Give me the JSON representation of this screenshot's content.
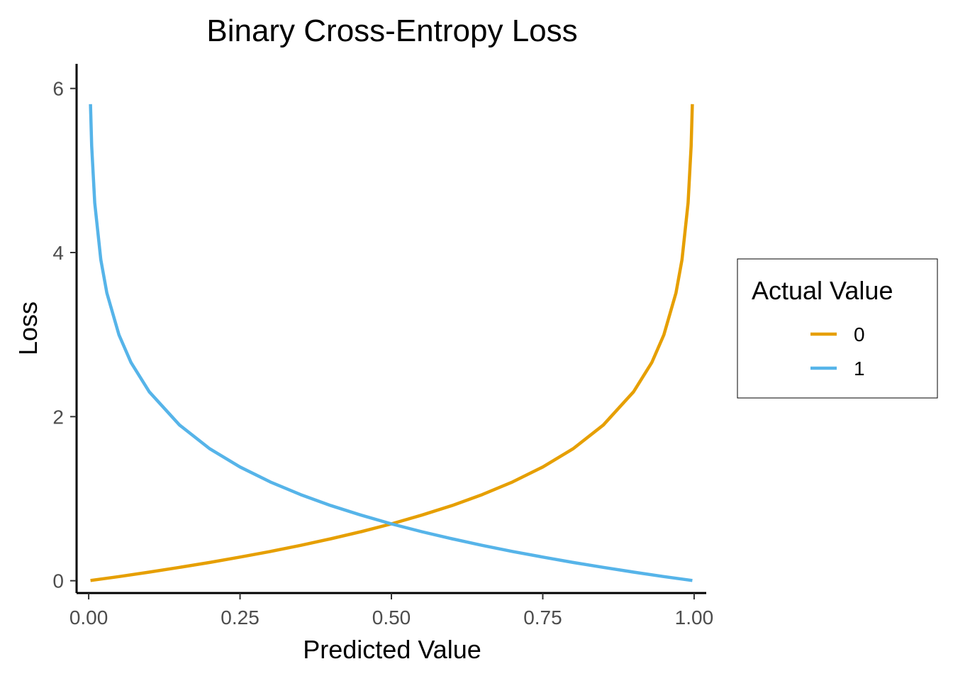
{
  "chart_data": {
    "type": "line",
    "title": "Binary Cross-Entropy Loss",
    "xlabel": "Predicted Value",
    "ylabel": "Loss",
    "xlim": [
      -0.02,
      1.02
    ],
    "ylim": [
      -0.15,
      6.3
    ],
    "x_ticks": [
      0,
      0.25,
      0.5,
      0.75,
      1.0
    ],
    "x_tick_labels": [
      "0.00",
      "0.25",
      "0.50",
      "0.75",
      "1.00"
    ],
    "y_ticks": [
      0,
      2,
      4,
      6
    ],
    "y_tick_labels": [
      "0",
      "2",
      "4",
      "6"
    ],
    "grid": false,
    "legend": {
      "title": "Actual Value",
      "position": "right"
    },
    "series": [
      {
        "name": "0",
        "color": "#E69F00",
        "x": [
          0.003,
          0.05,
          0.1,
          0.15,
          0.2,
          0.25,
          0.3,
          0.35,
          0.4,
          0.45,
          0.5,
          0.55,
          0.6,
          0.65,
          0.7,
          0.75,
          0.8,
          0.85,
          0.9,
          0.93,
          0.95,
          0.97,
          0.98,
          0.99,
          0.995,
          0.997
        ],
        "y": [
          0.003,
          0.051,
          0.105,
          0.163,
          0.223,
          0.288,
          0.357,
          0.431,
          0.511,
          0.598,
          0.693,
          0.799,
          0.916,
          1.05,
          1.204,
          1.386,
          1.609,
          1.897,
          2.303,
          2.659,
          2.996,
          3.507,
          3.912,
          4.605,
          5.298,
          5.809
        ]
      },
      {
        "name": "1",
        "color": "#56B4E9",
        "x": [
          0.003,
          0.005,
          0.01,
          0.02,
          0.03,
          0.05,
          0.07,
          0.1,
          0.15,
          0.2,
          0.25,
          0.3,
          0.35,
          0.4,
          0.45,
          0.5,
          0.55,
          0.6,
          0.65,
          0.7,
          0.75,
          0.8,
          0.85,
          0.9,
          0.95,
          0.997
        ],
        "y": [
          5.809,
          5.298,
          4.605,
          3.912,
          3.507,
          2.996,
          2.659,
          2.303,
          1.897,
          1.609,
          1.386,
          1.204,
          1.05,
          0.916,
          0.799,
          0.693,
          0.598,
          0.511,
          0.431,
          0.357,
          0.288,
          0.223,
          0.163,
          0.105,
          0.051,
          0.003
        ]
      }
    ]
  }
}
